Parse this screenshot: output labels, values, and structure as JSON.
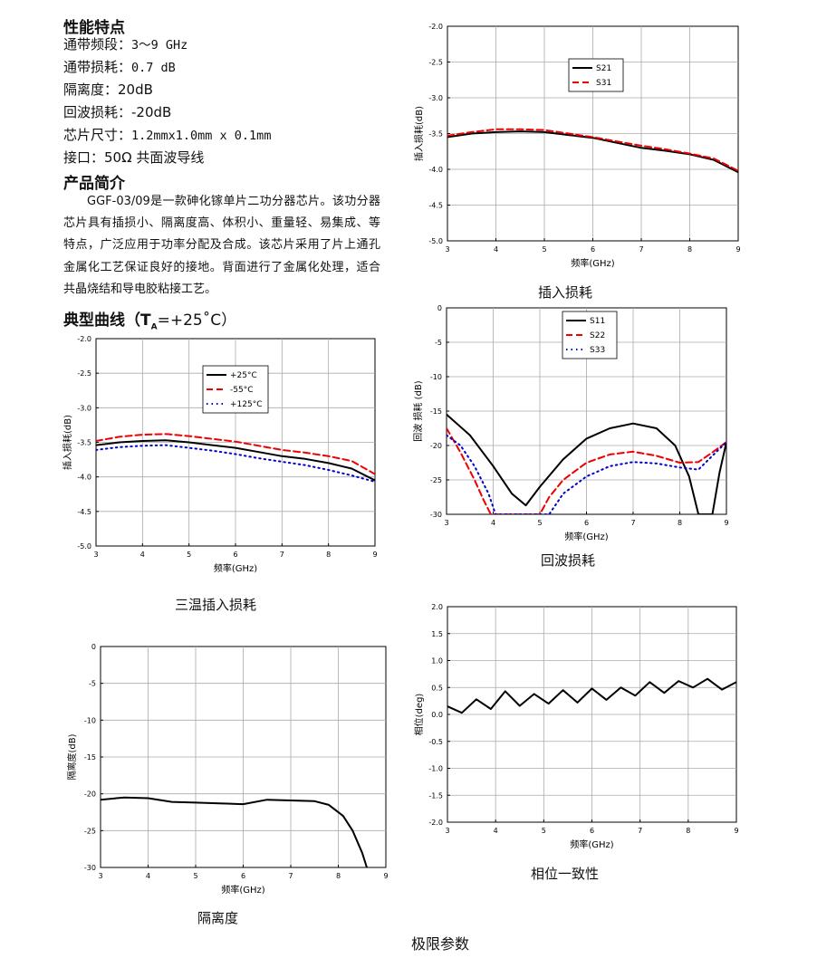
{
  "specs": {
    "title": "性能特点",
    "band_label": "通带频段：",
    "band_value": "3～9 GHz",
    "loss_label": "通带损耗：",
    "loss_value": "0.7 dB",
    "iso_label": "隔离度：",
    "iso_value": "20dB",
    "rl_label": "回波损耗：",
    "rl_value": "-20dB",
    "size_label": "芯片尺寸：",
    "size_value": "1.2mmx1.0mm x 0.1mm",
    "port_label": "接口：",
    "port_value": "50Ω 共面波导线"
  },
  "intro": {
    "title": "产品简介",
    "text": "GGF-03/09是一款砷化镓单片二功分器芯片。该功分器芯片具有插损小、隔离度高、体积小、重量轻、易集成、等特点，广泛应用于功率分配及合成。该芯片采用了片上通孔金属化工艺保证良好的接地。背面进行了金属化处理，适合共晶烧结和导电胶粘接工艺。"
  },
  "curves_title": "典型曲线（T",
  "curves_sub": "A",
  "curves_tail": "=+25˚C）",
  "captions": {
    "insertion": "插入损耗",
    "return": "回波损耗",
    "three_temp": "三温插入损耗",
    "isolation": "隔离度",
    "phase": "相位一致性",
    "limits": "极限参数"
  },
  "colors": {
    "black": "#000000",
    "red": "#ee0000",
    "blue": "#0000cc",
    "grid": "#aaaaaa"
  },
  "chart_data": [
    {
      "id": "insertion",
      "type": "line",
      "xlabel": "频率(GHz)",
      "ylabel": "插入损耗(dB)",
      "xlim": [
        3,
        9
      ],
      "ylim": [
        -5.0,
        -2.0
      ],
      "xticks": [
        3,
        4,
        5,
        6,
        7,
        8,
        9
      ],
      "yticks": [
        -2.0,
        -2.5,
        -3.0,
        -3.5,
        -4.0,
        -4.5,
        -5.0
      ],
      "ytick_labels": [
        "-2.0",
        "-2.5",
        "-3.0",
        "-3.5",
        "-4.0",
        "-4.5",
        "-5.0"
      ],
      "legend": "top-left",
      "series": [
        {
          "name": "S21",
          "color": "#000000",
          "dash": "",
          "x": [
            3,
            3.5,
            4,
            4.5,
            5,
            5.5,
            6,
            6.5,
            7,
            7.5,
            8,
            8.5,
            9
          ],
          "y": [
            -3.55,
            -3.5,
            -3.48,
            -3.47,
            -3.48,
            -3.52,
            -3.56,
            -3.63,
            -3.7,
            -3.74,
            -3.79,
            -3.87,
            -4.04
          ]
        },
        {
          "name": "S31",
          "color": "#ee0000",
          "dash": "7,4",
          "x": [
            3,
            3.5,
            4,
            4.5,
            5,
            5.5,
            6,
            6.5,
            7,
            7.5,
            8,
            8.5,
            9
          ],
          "y": [
            -3.53,
            -3.48,
            -3.44,
            -3.44,
            -3.45,
            -3.5,
            -3.55,
            -3.61,
            -3.67,
            -3.72,
            -3.78,
            -3.85,
            -4.02
          ]
        }
      ]
    },
    {
      "id": "return",
      "type": "line",
      "xlabel": "频率(GHz)",
      "ylabel": "回波 损耗 (dB)",
      "xlim": [
        3,
        9
      ],
      "ylim": [
        -30,
        0
      ],
      "xticks": [
        3,
        4,
        5,
        6,
        7,
        8,
        9
      ],
      "yticks": [
        0,
        -5,
        -10,
        -15,
        -20,
        -25,
        -30
      ],
      "ytick_labels": [
        "0",
        "-5",
        "-10",
        "-15",
        "-20",
        "-25",
        "-30"
      ],
      "legend": "top-center",
      "series": [
        {
          "name": "S11",
          "color": "#000000",
          "dash": "",
          "x": [
            3,
            3.5,
            4,
            4.4,
            4.7,
            5.0,
            5.5,
            6,
            6.5,
            7,
            7.5,
            7.9,
            8.2,
            8.4,
            8.5,
            8.7,
            8.85,
            9
          ],
          "y": [
            -15.5,
            -18.5,
            -23,
            -27,
            -28.7,
            -26,
            -22,
            -19,
            -17.5,
            -16.8,
            -17.5,
            -20,
            -24.5,
            -30,
            -30,
            -30,
            -24,
            -19.5
          ]
        },
        {
          "name": "S22",
          "color": "#ee0000",
          "dash": "7,4",
          "x": [
            3,
            3.3,
            3.6,
            3.8,
            3.95,
            4.0,
            5.0,
            5.2,
            5.5,
            6,
            6.5,
            7,
            7.5,
            8,
            8.4,
            8.7,
            9
          ],
          "y": [
            -17.5,
            -21,
            -25,
            -28,
            -30,
            -30,
            -30,
            -27.5,
            -25,
            -22.5,
            -21.3,
            -20.9,
            -21.5,
            -22.5,
            -22.4,
            -21,
            -19.5
          ]
        },
        {
          "name": "S33",
          "color": "#0000cc",
          "dash": "1.5,4",
          "x": [
            3,
            3.3,
            3.6,
            3.9,
            4.05,
            4.1,
            5.2,
            5.5,
            6,
            6.5,
            7,
            7.5,
            8,
            8.4,
            8.7,
            9
          ],
          "y": [
            -18.5,
            -20,
            -23,
            -27,
            -30,
            -30,
            -30,
            -27,
            -24.5,
            -23,
            -22.4,
            -22.6,
            -23.2,
            -23.5,
            -21.5,
            -19.5
          ]
        }
      ]
    },
    {
      "id": "three_temp",
      "type": "line",
      "xlabel": "频率(GHz)",
      "ylabel": "插入损耗(dB)",
      "xlim": [
        3,
        9
      ],
      "ylim": [
        -5.0,
        -2.0
      ],
      "xticks": [
        3,
        4,
        5,
        6,
        7,
        8,
        9
      ],
      "yticks": [
        -2.0,
        -2.5,
        -3.0,
        -3.5,
        -4.0,
        -4.5,
        -5.0
      ],
      "ytick_labels": [
        "-2.0",
        "-2.5",
        "-3.0",
        "-3.5",
        "-4.0",
        "-4.5",
        "-5.0"
      ],
      "legend": "top-center",
      "series": [
        {
          "name": "+25°C",
          "color": "#000000",
          "dash": "",
          "x": [
            3,
            3.5,
            4,
            4.5,
            5,
            5.5,
            6,
            6.5,
            7,
            7.5,
            8,
            8.5,
            9
          ],
          "y": [
            -3.54,
            -3.5,
            -3.48,
            -3.47,
            -3.5,
            -3.54,
            -3.58,
            -3.64,
            -3.7,
            -3.74,
            -3.8,
            -3.88,
            -4.05
          ]
        },
        {
          "name": "-55°C",
          "color": "#ee0000",
          "dash": "7,4",
          "x": [
            3,
            3.5,
            4,
            4.5,
            5,
            5.5,
            6,
            6.5,
            7,
            7.5,
            8,
            8.5,
            9
          ],
          "y": [
            -3.48,
            -3.42,
            -3.39,
            -3.38,
            -3.41,
            -3.45,
            -3.49,
            -3.55,
            -3.61,
            -3.65,
            -3.7,
            -3.77,
            -3.96
          ]
        },
        {
          "name": "+125°C",
          "color": "#0000cc",
          "dash": "1.5,4",
          "x": [
            3,
            3.5,
            4,
            4.5,
            5,
            5.5,
            6,
            6.5,
            7,
            7.5,
            8,
            8.5,
            9
          ],
          "y": [
            -3.61,
            -3.57,
            -3.55,
            -3.54,
            -3.58,
            -3.62,
            -3.67,
            -3.73,
            -3.78,
            -3.83,
            -3.9,
            -3.98,
            -4.07
          ]
        }
      ]
    },
    {
      "id": "isolation",
      "type": "line",
      "xlabel": "频率(GHz)",
      "ylabel": "隔离度(dB)",
      "xlim": [
        3,
        9
      ],
      "ylim": [
        -30,
        0
      ],
      "xticks": [
        3,
        4,
        5,
        6,
        7,
        8,
        9
      ],
      "yticks": [
        0,
        -5,
        -10,
        -15,
        -20,
        -25,
        -30
      ],
      "ytick_labels": [
        "0",
        "-5",
        "-10",
        "-15",
        "-20",
        "-25",
        "-30"
      ],
      "legend": "none",
      "series": [
        {
          "color": "#000000",
          "dash": "",
          "x": [
            3,
            3.5,
            4,
            4.5,
            5,
            5.5,
            6,
            6.5,
            7,
            7.5,
            7.8,
            8.1,
            8.3,
            8.5,
            8.6
          ],
          "y": [
            -20.8,
            -20.5,
            -20.6,
            -21.1,
            -21.2,
            -21.3,
            -21.4,
            -20.8,
            -20.9,
            -21.0,
            -21.5,
            -23,
            -25,
            -28,
            -30
          ]
        }
      ]
    },
    {
      "id": "phase",
      "type": "line",
      "xlabel": "频率(GHz)",
      "ylabel": "相位(deg)",
      "xlim": [
        3,
        9
      ],
      "ylim": [
        -2.0,
        2.0
      ],
      "xticks": [
        3,
        4,
        5,
        6,
        7,
        8,
        9
      ],
      "yticks": [
        2.0,
        1.5,
        1.0,
        0.5,
        0.0,
        -0.5,
        -1.0,
        -1.5,
        -2.0
      ],
      "ytick_labels": [
        "2.0",
        "1.5",
        "1.0",
        "0.5",
        "0.0",
        "-0.5",
        "-1.0",
        "-1.5",
        "-2.0"
      ],
      "legend": "none",
      "series": [
        {
          "color": "#000000",
          "dash": "",
          "x": [
            3,
            3.3,
            3.6,
            3.9,
            4.2,
            4.5,
            4.8,
            5.1,
            5.4,
            5.7,
            6.0,
            6.3,
            6.6,
            6.9,
            7.2,
            7.5,
            7.8,
            8.1,
            8.4,
            8.7,
            9
          ],
          "y": [
            0.15,
            0.03,
            0.28,
            0.1,
            0.43,
            0.16,
            0.38,
            0.2,
            0.45,
            0.22,
            0.48,
            0.27,
            0.5,
            0.35,
            0.6,
            0.4,
            0.62,
            0.5,
            0.66,
            0.46,
            0.6
          ]
        }
      ]
    }
  ]
}
